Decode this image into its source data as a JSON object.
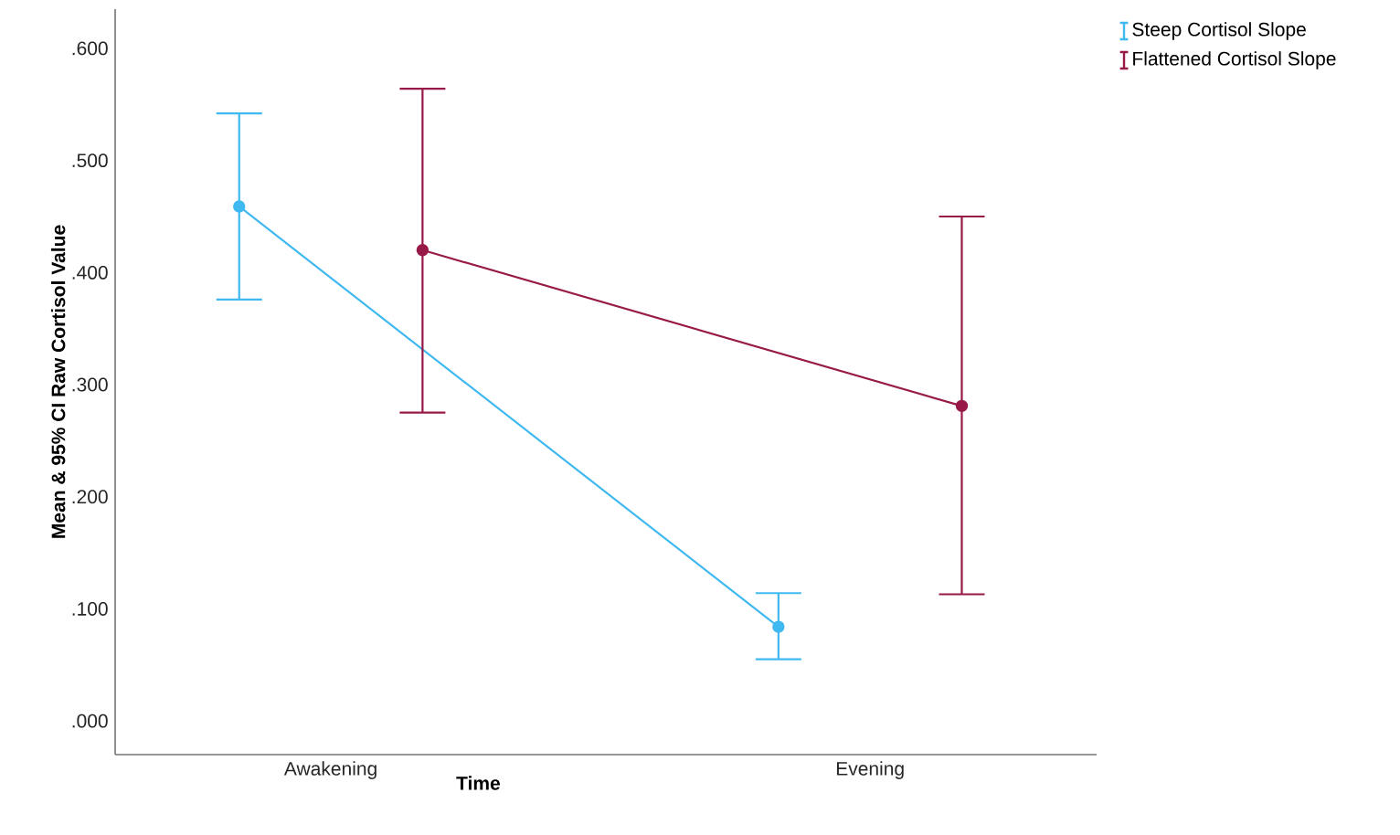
{
  "chart_data": {
    "type": "line",
    "xlabel": "Time",
    "ylabel": "Mean & 95% CI Raw Cortisol Value",
    "categories": [
      "Awakening",
      "Evening"
    ],
    "series": [
      {
        "name": "Steep Cortisol Slope",
        "color": "#40b8f0",
        "values": [
          0.459,
          0.084
        ],
        "errors": [
          [
            0.376,
            0.542
          ],
          [
            0.055,
            0.114
          ]
        ]
      },
      {
        "name": "Flattened Cortisol Slope",
        "color": "#981a48",
        "values": [
          0.42,
          0.281
        ],
        "errors": [
          [
            0.275,
            0.564
          ],
          [
            0.113,
            0.45
          ]
        ]
      }
    ],
    "ylim": [
      -0.03,
      0.635
    ],
    "yticks": [
      {
        "value": 0,
        "label": ".000"
      },
      {
        "value": 0.1,
        "label": ".100"
      },
      {
        "value": 0.2,
        "label": ".200"
      },
      {
        "value": 0.3,
        "label": ".300"
      },
      {
        "value": 0.4,
        "label": ".400"
      },
      {
        "value": 0.5,
        "label": ".500"
      },
      {
        "value": 0.6,
        "label": ".600"
      }
    ],
    "grid": false,
    "legend": "top right",
    "marker": "circle",
    "line_style": "solid"
  }
}
